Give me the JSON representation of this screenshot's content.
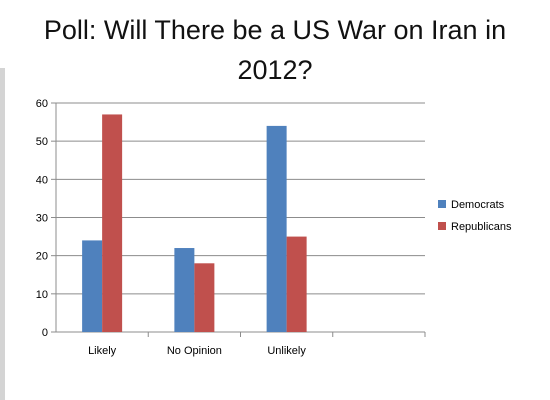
{
  "chart_data": {
    "type": "bar",
    "title": "Poll: Will There be a US War on Iran in 2012?",
    "title_lines": [
      "Poll: Will There be a US War on Iran in",
      "2012?"
    ],
    "categories": [
      "Likely",
      "No Opinion",
      "Unlikely"
    ],
    "series": [
      {
        "name": "Democrats",
        "values": [
          24,
          22,
          54
        ],
        "color": "#4f81bd"
      },
      {
        "name": "Republicans",
        "values": [
          57,
          18,
          25
        ],
        "color": "#c0504d"
      }
    ],
    "ylim": [
      0,
      60
    ],
    "yticks": [
      0,
      10,
      20,
      30,
      40,
      50,
      60
    ],
    "xlabel": "",
    "ylabel": "",
    "grid": true,
    "legend": "right"
  }
}
